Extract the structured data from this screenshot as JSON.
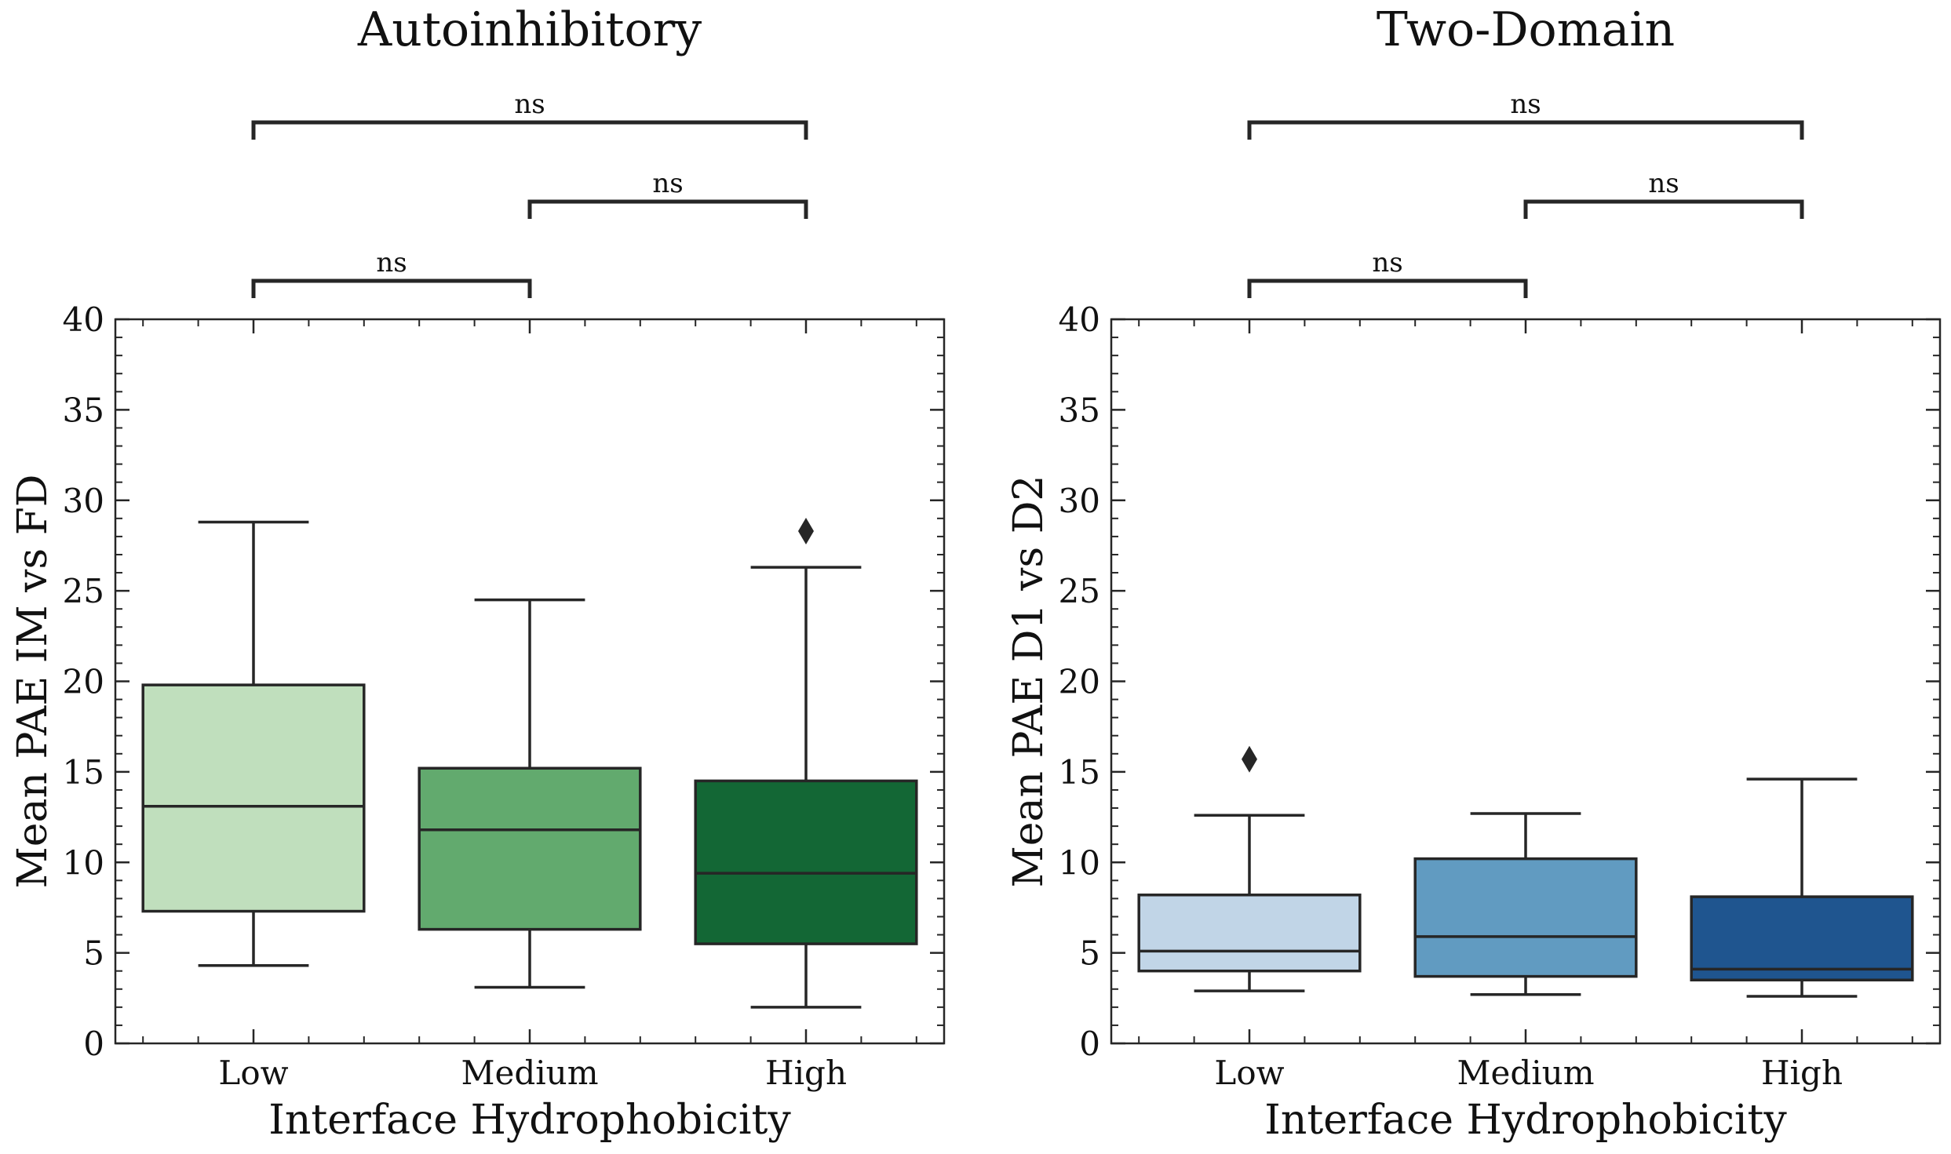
{
  "chart_data": [
    {
      "type": "box",
      "title": "Autoinhibitory",
      "xlabel": "Interface Hydrophobicity",
      "ylabel": "Mean PAE IM vs FD",
      "ylim": [
        0,
        40
      ],
      "yticks": [
        0,
        5,
        10,
        15,
        20,
        25,
        30,
        35,
        40
      ],
      "categories": [
        "Low",
        "Medium",
        "High"
      ],
      "boxes": [
        {
          "category": "Low",
          "whisker_low": 4.3,
          "q1": 7.3,
          "median": 13.1,
          "q3": 19.8,
          "whisker_high": 28.8,
          "outliers": [],
          "color": "#c0dfbd"
        },
        {
          "category": "Medium",
          "whisker_low": 3.1,
          "q1": 6.3,
          "median": 11.8,
          "q3": 15.2,
          "whisker_high": 24.5,
          "outliers": [],
          "color": "#62aa6e"
        },
        {
          "category": "High",
          "whisker_low": 2.0,
          "q1": 5.5,
          "median": 9.4,
          "q3": 14.5,
          "whisker_high": 26.3,
          "outliers": [
            28.3
          ],
          "color": "#136735"
        }
      ],
      "significance": [
        {
          "from": "Low",
          "to": "Medium",
          "label": "ns",
          "level": 1
        },
        {
          "from": "Medium",
          "to": "High",
          "label": "ns",
          "level": 2
        },
        {
          "from": "Low",
          "to": "High",
          "label": "ns",
          "level": 3
        }
      ]
    },
    {
      "type": "box",
      "title": "Two-Domain",
      "xlabel": "Interface Hydrophobicity",
      "ylabel": "Mean PAE D1 vs D2",
      "ylim": [
        0,
        40
      ],
      "yticks": [
        0,
        5,
        10,
        15,
        20,
        25,
        30,
        35,
        40
      ],
      "categories": [
        "Low",
        "Medium",
        "High"
      ],
      "boxes": [
        {
          "category": "Low",
          "whisker_low": 2.9,
          "q1": 4.0,
          "median": 5.1,
          "q3": 8.2,
          "whisker_high": 12.6,
          "outliers": [
            15.7
          ],
          "color": "#c1d5e7"
        },
        {
          "category": "Medium",
          "whisker_low": 2.7,
          "q1": 3.7,
          "median": 5.9,
          "q3": 10.2,
          "whisker_high": 12.7,
          "outliers": [],
          "color": "#619bc1"
        },
        {
          "category": "High",
          "whisker_low": 2.6,
          "q1": 3.5,
          "median": 4.1,
          "q3": 8.1,
          "whisker_high": 14.6,
          "outliers": [],
          "color": "#1f558f"
        }
      ],
      "significance": [
        {
          "from": "Low",
          "to": "Medium",
          "label": "ns",
          "level": 1
        },
        {
          "from": "Medium",
          "to": "High",
          "label": "ns",
          "level": 2
        },
        {
          "from": "Low",
          "to": "High",
          "label": "ns",
          "level": 3
        }
      ]
    }
  ]
}
